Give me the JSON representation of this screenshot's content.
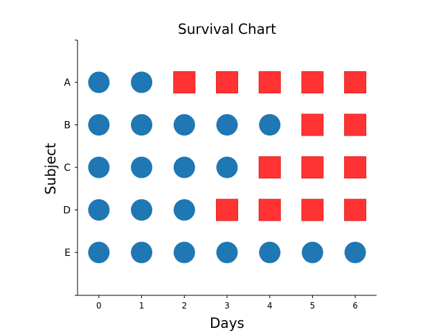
{
  "chart_data": {
    "type": "scatter",
    "title": "Survival Chart",
    "xlabel": "Days",
    "ylabel": "Subject",
    "x_ticks": [
      0,
      1,
      2,
      3,
      4,
      5,
      6
    ],
    "subjects": [
      "A",
      "B",
      "C",
      "D",
      "E"
    ],
    "xlim": [
      -0.5,
      6.5
    ],
    "grid": false,
    "legend": false,
    "status_codes": {
      "1": "circle",
      "0": "square"
    },
    "status": {
      "A": [
        1,
        1,
        0,
        0,
        0,
        0,
        0
      ],
      "B": [
        1,
        1,
        1,
        1,
        1,
        0,
        0
      ],
      "C": [
        1,
        1,
        1,
        1,
        0,
        0,
        0
      ],
      "D": [
        1,
        1,
        1,
        0,
        0,
        0,
        0
      ],
      "E": [
        1,
        1,
        1,
        1,
        1,
        1,
        1
      ]
    },
    "colors": {
      "circle": "#1f77b4",
      "square": "#ff3333",
      "square_edge": "#e62020"
    }
  }
}
